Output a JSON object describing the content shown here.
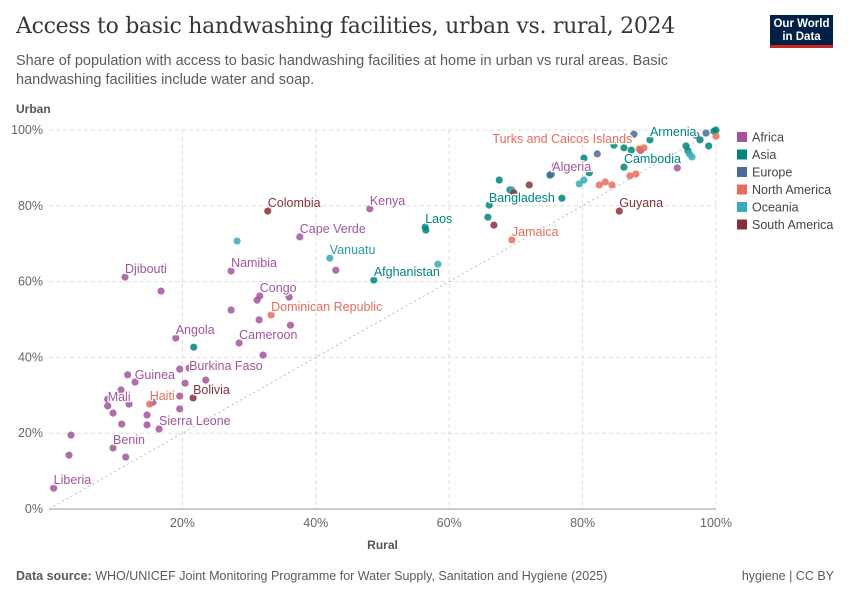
{
  "header": {
    "title": "Access to basic handwashing facilities, urban vs. rural, 2024",
    "subtitle": "Share of population with access to basic handwashing facilities at home in urban vs rural areas. Basic handwashing facilities include water and soap.",
    "logo_text": "Our World in Data"
  },
  "footer": {
    "source_label": "Data source:",
    "source_text": "WHO/UNICEF Joint Monitoring Programme for Water Supply, Sanitation and Hygiene (2025)",
    "license": "hygiene | CC BY"
  },
  "chart_data": {
    "type": "scatter",
    "title": "Access to basic handwashing facilities, urban vs. rural, 2024",
    "xlabel": "Rural",
    "ylabel": "Urban",
    "xlim": [
      0,
      100
    ],
    "ylim": [
      0,
      100
    ],
    "x_ticks": [
      "20%",
      "40%",
      "60%",
      "80%",
      "100%"
    ],
    "y_ticks": [
      "0%",
      "20%",
      "40%",
      "60%",
      "80%",
      "100%"
    ],
    "grid": true,
    "diagonal_reference_line": true,
    "legend_position": "right",
    "colors": {
      "Africa": "#a2559c",
      "Asia": "#00847e",
      "Europe": "#4c6a9c",
      "North America": "#e56e5a",
      "Oceania": "#38aaba",
      "South America": "#883039"
    },
    "legend": [
      "Africa",
      "Asia",
      "Europe",
      "North America",
      "Oceania",
      "South America"
    ],
    "points": [
      {
        "label": "Liberia",
        "region": "Africa",
        "x": 0.7,
        "y": 5.5
      },
      {
        "region": "Africa",
        "x": 3.3,
        "y": 19.5
      },
      {
        "region": "Africa",
        "x": 3.0,
        "y": 14.2
      },
      {
        "label": "Benin",
        "region": "Africa",
        "x": 9.6,
        "y": 16.1
      },
      {
        "region": "Africa",
        "x": 11.5,
        "y": 13.7
      },
      {
        "region": "Africa",
        "x": 10.9,
        "y": 22.4
      },
      {
        "region": "Africa",
        "x": 8.8,
        "y": 27.2
      },
      {
        "region": "Africa",
        "x": 9.6,
        "y": 25.3
      },
      {
        "label": "Mali",
        "region": "Africa",
        "x": 8.8,
        "y": 29.0
      },
      {
        "region": "Africa",
        "x": 10.8,
        "y": 31.4
      },
      {
        "region": "Africa",
        "x": 12.0,
        "y": 27.7
      },
      {
        "label": "Guinea",
        "region": "Africa",
        "x": 11.8,
        "y": 35.4
      },
      {
        "region": "Africa",
        "x": 12.9,
        "y": 33.5
      },
      {
        "region": "Africa",
        "x": 14.7,
        "y": 24.8
      },
      {
        "region": "Africa",
        "x": 15.6,
        "y": 28.2
      },
      {
        "region": "Africa",
        "x": 14.7,
        "y": 22.2
      },
      {
        "label": "Sierra Leone",
        "region": "Africa",
        "x": 16.5,
        "y": 21.1
      },
      {
        "region": "Africa",
        "x": 19.6,
        "y": 26.4
      },
      {
        "region": "Africa",
        "x": 19.6,
        "y": 36.9
      },
      {
        "label": "Burkina Faso",
        "region": "Africa",
        "x": 21.0,
        "y": 37.2
      },
      {
        "region": "Africa",
        "x": 20.4,
        "y": 33.2
      },
      {
        "region": "Africa",
        "x": 23.5,
        "y": 34.0
      },
      {
        "region": "Africa",
        "x": 19.6,
        "y": 29.8
      },
      {
        "label": "Angola",
        "region": "Africa",
        "x": 19.0,
        "y": 45.1
      },
      {
        "label": "Cameroon",
        "region": "Africa",
        "x": 28.5,
        "y": 43.8
      },
      {
        "region": "Africa",
        "x": 32.1,
        "y": 40.6
      },
      {
        "label": "Djibouti",
        "region": "Africa",
        "x": 11.4,
        "y": 61.2
      },
      {
        "region": "Africa",
        "x": 16.8,
        "y": 57.5
      },
      {
        "label": "Namibia",
        "region": "Africa",
        "x": 27.3,
        "y": 62.8
      },
      {
        "region": "Africa",
        "x": 27.3,
        "y": 52.5
      },
      {
        "label": "Congo",
        "region": "Africa",
        "x": 31.6,
        "y": 56.2
      },
      {
        "region": "Africa",
        "x": 31.2,
        "y": 55.1
      },
      {
        "region": "Africa",
        "x": 31.5,
        "y": 49.9
      },
      {
        "region": "Africa",
        "x": 36.0,
        "y": 55.9
      },
      {
        "region": "Africa",
        "x": 36.2,
        "y": 48.5
      },
      {
        "label": "Cape Verde",
        "region": "Africa",
        "x": 37.6,
        "y": 71.8
      },
      {
        "label": "Kenya",
        "region": "Africa",
        "x": 48.1,
        "y": 79.2
      },
      {
        "region": "Africa",
        "x": 43.0,
        "y": 63.0
      },
      {
        "label": "Algeria",
        "region": "Africa",
        "x": 75.9,
        "y": 90.5
      },
      {
        "region": "Africa",
        "x": 94.2,
        "y": 90.0
      },
      {
        "region": "Africa",
        "x": 88.7,
        "y": 94.6
      },
      {
        "region": "Asia",
        "x": 21.7,
        "y": 42.7
      },
      {
        "label": "Afghanistan",
        "region": "Asia",
        "x": 48.7,
        "y": 60.4
      },
      {
        "label": "Laos",
        "region": "Asia",
        "x": 56.4,
        "y": 74.4
      },
      {
        "region": "Asia",
        "x": 56.5,
        "y": 73.6
      },
      {
        "region": "Asia",
        "x": 65.8,
        "y": 77.0
      },
      {
        "region": "Asia",
        "x": 66.0,
        "y": 80.2
      },
      {
        "region": "Asia",
        "x": 67.5,
        "y": 86.8
      },
      {
        "label": "Bangladesh",
        "region": "Asia",
        "x": 69.1,
        "y": 84.2
      },
      {
        "region": "Asia",
        "x": 76.9,
        "y": 82.0
      },
      {
        "region": "Asia",
        "x": 75.1,
        "y": 88.1
      },
      {
        "region": "Asia",
        "x": 80.2,
        "y": 92.6
      },
      {
        "region": "Asia",
        "x": 81.0,
        "y": 88.7
      },
      {
        "region": "Asia",
        "x": 84.7,
        "y": 96.0
      },
      {
        "region": "Asia",
        "x": 86.2,
        "y": 95.3
      },
      {
        "label": "Cambodia",
        "region": "Asia",
        "x": 86.2,
        "y": 90.2
      },
      {
        "region": "Asia",
        "x": 87.3,
        "y": 94.7
      },
      {
        "label": "Armenia",
        "region": "Asia",
        "x": 90.1,
        "y": 97.4
      },
      {
        "region": "Asia",
        "x": 95.5,
        "y": 95.8
      },
      {
        "region": "Asia",
        "x": 97.6,
        "y": 97.4
      },
      {
        "region": "Asia",
        "x": 98.9,
        "y": 95.8
      },
      {
        "region": "Asia",
        "x": 99.7,
        "y": 99.7
      },
      {
        "region": "Asia",
        "x": 100,
        "y": 100
      },
      {
        "region": "Asia",
        "x": 95.8,
        "y": 94.5
      },
      {
        "region": "Europe",
        "x": 87.7,
        "y": 98.9
      },
      {
        "region": "Europe",
        "x": 82.2,
        "y": 93.7
      },
      {
        "region": "Europe",
        "x": 75.3,
        "y": 88.3
      },
      {
        "region": "Europe",
        "x": 98.5,
        "y": 99.2
      },
      {
        "region": "Europe",
        "x": 97.0,
        "y": 98.6
      },
      {
        "label": "Turks and Caicos Islands",
        "region": "North America",
        "x": 88.5,
        "y": 95.0
      },
      {
        "region": "North America",
        "x": 89.2,
        "y": 95.3
      },
      {
        "label": "Jamaica",
        "region": "North America",
        "x": 69.4,
        "y": 71.0
      },
      {
        "label": "Dominican Republic",
        "region": "North America",
        "x": 33.3,
        "y": 51.2
      },
      {
        "label": "Haiti",
        "region": "North America",
        "x": 15.1,
        "y": 27.7
      },
      {
        "region": "North America",
        "x": 82.5,
        "y": 85.5
      },
      {
        "region": "North America",
        "x": 83.4,
        "y": 86.3
      },
      {
        "region": "North America",
        "x": 84.4,
        "y": 85.5
      },
      {
        "region": "North America",
        "x": 87.1,
        "y": 87.9
      },
      {
        "region": "North America",
        "x": 88.0,
        "y": 88.4
      },
      {
        "region": "North America",
        "x": 100,
        "y": 98.4
      },
      {
        "region": "Oceania",
        "x": 28.2,
        "y": 70.7
      },
      {
        "label": "Vanuatu",
        "region": "Oceania",
        "x": 42.1,
        "y": 66.2
      },
      {
        "region": "Oceania",
        "x": 58.3,
        "y": 64.6
      },
      {
        "region": "Oceania",
        "x": 69.4,
        "y": 84.2
      },
      {
        "region": "Oceania",
        "x": 79.5,
        "y": 85.8
      },
      {
        "region": "Oceania",
        "x": 80.2,
        "y": 86.8
      },
      {
        "region": "Oceania",
        "x": 96.4,
        "y": 92.9
      },
      {
        "region": "Oceania",
        "x": 96.0,
        "y": 93.7
      },
      {
        "label": "Colombia",
        "region": "South America",
        "x": 32.8,
        "y": 78.6
      },
      {
        "label": "Bolivia",
        "region": "South America",
        "x": 21.6,
        "y": 29.3
      },
      {
        "label": "Guyana",
        "region": "South America",
        "x": 85.5,
        "y": 78.6
      },
      {
        "region": "South America",
        "x": 72.0,
        "y": 85.5
      },
      {
        "region": "South America",
        "x": 66.7,
        "y": 74.9
      },
      {
        "region": "South America",
        "x": 69.7,
        "y": 83.4
      }
    ]
  }
}
